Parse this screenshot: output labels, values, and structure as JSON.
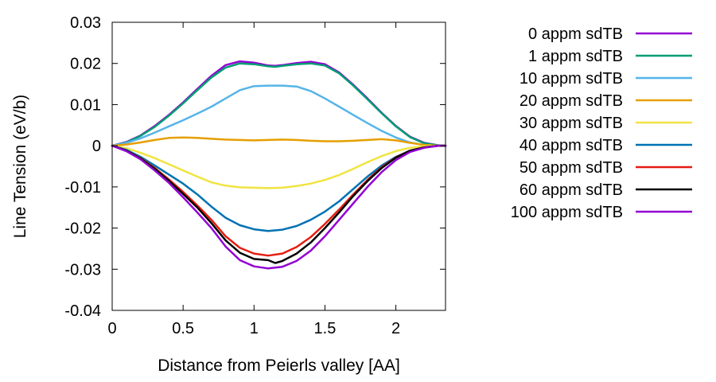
{
  "chart_data": {
    "type": "line",
    "xlabel": "Distance from Peierls valley [AA]",
    "ylabel": "Line Tension (eV/b)",
    "xlim": [
      0,
      2.35
    ],
    "ylim": [
      -0.04,
      0.03
    ],
    "xticks": [
      0,
      0.5,
      1,
      1.5,
      2
    ],
    "xtick_labels": [
      "0",
      "0.5",
      "1",
      "1.5",
      "2"
    ],
    "yticks": [
      0.03,
      0.02,
      0.01,
      0,
      -0.01,
      -0.02,
      -0.03,
      -0.04
    ],
    "ytick_labels": [
      "0.03",
      "0.02",
      "0.01",
      "0",
      "-0.01",
      "-0.02",
      "-0.03",
      "-0.04"
    ],
    "grid": false,
    "legend_position": "outside-right",
    "series": [
      {
        "name": "0 appm sdTB",
        "color": "#9400d3",
        "x": [
          0,
          0.1,
          0.2,
          0.3,
          0.4,
          0.5,
          0.6,
          0.7,
          0.8,
          0.9,
          1.0,
          1.1,
          1.15,
          1.2,
          1.3,
          1.4,
          1.5,
          1.6,
          1.7,
          1.8,
          1.9,
          2.0,
          2.1,
          2.2,
          2.3,
          2.35
        ],
        "y": [
          0,
          0.0009,
          0.0025,
          0.0048,
          0.0075,
          0.0105,
          0.0138,
          0.017,
          0.0196,
          0.0205,
          0.0202,
          0.0195,
          0.0194,
          0.0196,
          0.0201,
          0.0204,
          0.0198,
          0.0178,
          0.0148,
          0.0115,
          0.008,
          0.0048,
          0.0022,
          0.0007,
          0.0001,
          0
        ]
      },
      {
        "name": "1 appm sdTB",
        "color": "#009e73",
        "x": [
          0,
          0.1,
          0.2,
          0.3,
          0.4,
          0.5,
          0.6,
          0.7,
          0.8,
          0.9,
          1.0,
          1.1,
          1.15,
          1.2,
          1.3,
          1.4,
          1.5,
          1.6,
          1.7,
          1.8,
          1.9,
          2.0,
          2.1,
          2.2,
          2.3,
          2.35
        ],
        "y": [
          0,
          0.0008,
          0.0024,
          0.0046,
          0.0073,
          0.0103,
          0.0135,
          0.0166,
          0.019,
          0.02,
          0.0198,
          0.0193,
          0.0192,
          0.0194,
          0.0198,
          0.02,
          0.0195,
          0.0176,
          0.0146,
          0.0113,
          0.0079,
          0.0047,
          0.0021,
          0.0006,
          0.0001,
          0
        ]
      },
      {
        "name": "10 appm sdTB",
        "color": "#56b4e9",
        "x": [
          0,
          0.1,
          0.2,
          0.3,
          0.4,
          0.5,
          0.6,
          0.7,
          0.8,
          0.9,
          1.0,
          1.1,
          1.2,
          1.3,
          1.4,
          1.5,
          1.6,
          1.7,
          1.8,
          1.9,
          2.0,
          2.1,
          2.2,
          2.3,
          2.35
        ],
        "y": [
          0,
          0.0007,
          0.0018,
          0.0032,
          0.0047,
          0.0062,
          0.0078,
          0.0095,
          0.0115,
          0.0135,
          0.0145,
          0.0146,
          0.0146,
          0.0144,
          0.0133,
          0.0115,
          0.0095,
          0.0075,
          0.0055,
          0.0036,
          0.002,
          0.0008,
          0.0002,
          0,
          0
        ]
      },
      {
        "name": "20 appm sdTB",
        "color": "#e69f00",
        "x": [
          0,
          0.1,
          0.2,
          0.3,
          0.4,
          0.5,
          0.6,
          0.7,
          0.8,
          0.9,
          1.0,
          1.1,
          1.2,
          1.3,
          1.4,
          1.5,
          1.6,
          1.7,
          1.8,
          1.9,
          2.0,
          2.1,
          2.2,
          2.3,
          2.35
        ],
        "y": [
          0,
          0.0003,
          0.0008,
          0.0014,
          0.0019,
          0.002,
          0.0019,
          0.0017,
          0.0015,
          0.0014,
          0.0013,
          0.0014,
          0.0015,
          0.0014,
          0.0012,
          0.0011,
          0.0011,
          0.0012,
          0.0014,
          0.0016,
          0.0013,
          0.0007,
          0.0002,
          0,
          0
        ]
      },
      {
        "name": "30 appm sdTB",
        "color": "#f0e442",
        "x": [
          0,
          0.1,
          0.2,
          0.3,
          0.4,
          0.5,
          0.6,
          0.7,
          0.8,
          0.9,
          1.0,
          1.1,
          1.2,
          1.3,
          1.4,
          1.5,
          1.6,
          1.7,
          1.8,
          1.9,
          2.0,
          2.1,
          2.2,
          2.3,
          2.35
        ],
        "y": [
          0,
          -0.0006,
          -0.0017,
          -0.003,
          -0.0045,
          -0.006,
          -0.0075,
          -0.0089,
          -0.0097,
          -0.0101,
          -0.0102,
          -0.0103,
          -0.0102,
          -0.0098,
          -0.0092,
          -0.0083,
          -0.0071,
          -0.0056,
          -0.004,
          -0.0025,
          -0.0013,
          -0.0005,
          -0.0001,
          0,
          0
        ]
      },
      {
        "name": "40 appm sdTB",
        "color": "#0072b2",
        "x": [
          0,
          0.1,
          0.2,
          0.3,
          0.4,
          0.5,
          0.6,
          0.7,
          0.8,
          0.9,
          1.0,
          1.1,
          1.2,
          1.3,
          1.4,
          1.5,
          1.6,
          1.7,
          1.8,
          1.9,
          2.0,
          2.1,
          2.2,
          2.3,
          2.35
        ],
        "y": [
          0,
          -0.001,
          -0.0027,
          -0.0048,
          -0.007,
          -0.0092,
          -0.0118,
          -0.0148,
          -0.0175,
          -0.0193,
          -0.0203,
          -0.0207,
          -0.0204,
          -0.0195,
          -0.018,
          -0.016,
          -0.0135,
          -0.0105,
          -0.0075,
          -0.0048,
          -0.0027,
          -0.0012,
          -0.0004,
          0,
          0
        ]
      },
      {
        "name": "50 appm sdTB",
        "color": "#e51e10",
        "x": [
          0,
          0.1,
          0.2,
          0.3,
          0.4,
          0.5,
          0.6,
          0.7,
          0.8,
          0.9,
          1.0,
          1.1,
          1.2,
          1.3,
          1.4,
          1.5,
          1.6,
          1.7,
          1.8,
          1.9,
          2.0,
          2.1,
          2.2,
          2.3,
          2.35
        ],
        "y": [
          0,
          -0.0012,
          -0.003,
          -0.0054,
          -0.0082,
          -0.0112,
          -0.0145,
          -0.018,
          -0.022,
          -0.0248,
          -0.0262,
          -0.0267,
          -0.0262,
          -0.0246,
          -0.0222,
          -0.019,
          -0.0155,
          -0.0118,
          -0.0083,
          -0.0052,
          -0.0028,
          -0.0012,
          -0.0004,
          0,
          0
        ]
      },
      {
        "name": "60 appm sdTB",
        "color": "#000000",
        "x": [
          0,
          0.1,
          0.2,
          0.3,
          0.4,
          0.5,
          0.6,
          0.7,
          0.8,
          0.9,
          1.0,
          1.1,
          1.15,
          1.2,
          1.3,
          1.4,
          1.5,
          1.6,
          1.7,
          1.8,
          1.9,
          2.0,
          2.1,
          2.2,
          2.3,
          2.35
        ],
        "y": [
          0,
          -0.0012,
          -0.0031,
          -0.0056,
          -0.0085,
          -0.0117,
          -0.015,
          -0.0188,
          -0.023,
          -0.026,
          -0.0275,
          -0.0278,
          -0.0285,
          -0.028,
          -0.0262,
          -0.0235,
          -0.02,
          -0.0162,
          -0.0122,
          -0.0086,
          -0.0054,
          -0.0029,
          -0.0012,
          -0.0004,
          0,
          0
        ]
      },
      {
        "name": "100 appm sdTB",
        "color": "#9400d3",
        "x": [
          0,
          0.1,
          0.2,
          0.3,
          0.4,
          0.5,
          0.6,
          0.7,
          0.8,
          0.9,
          1.0,
          1.1,
          1.2,
          1.3,
          1.4,
          1.5,
          1.6,
          1.7,
          1.8,
          1.9,
          2.0,
          2.1,
          2.2,
          2.3,
          2.35
        ],
        "y": [
          0,
          -0.0013,
          -0.0033,
          -0.006,
          -0.009,
          -0.0125,
          -0.0162,
          -0.02,
          -0.0245,
          -0.0278,
          -0.0293,
          -0.0298,
          -0.0294,
          -0.028,
          -0.0255,
          -0.022,
          -0.018,
          -0.014,
          -0.01,
          -0.0064,
          -0.0035,
          -0.0015,
          -0.0005,
          0,
          0
        ]
      }
    ]
  }
}
